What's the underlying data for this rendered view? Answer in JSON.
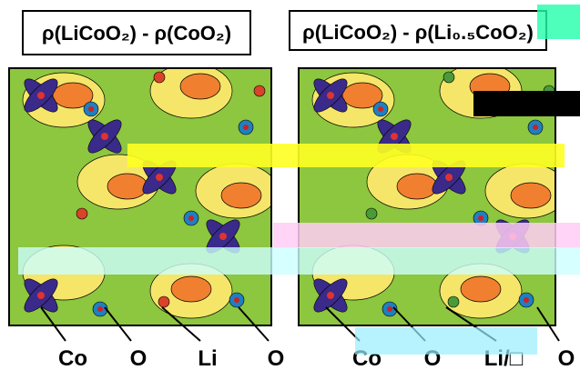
{
  "panels": [
    {
      "title": "ρ(LiCoO₂) - ρ(CoO₂)",
      "labels": [
        "Co",
        "O",
        "Li",
        "O"
      ]
    },
    {
      "title": "ρ(LiCoO₂) - ρ(Li₀.₅CoO₂)",
      "labels": [
        "Co",
        "O",
        "Li/□",
        "O"
      ]
    }
  ]
}
